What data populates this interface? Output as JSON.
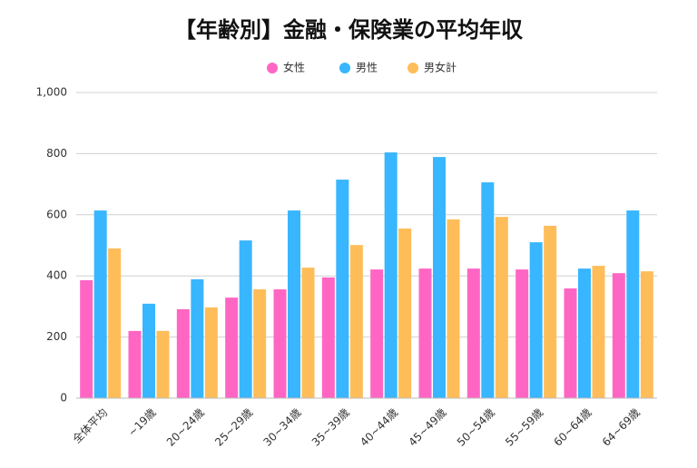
{
  "chart_data": {
    "type": "bar",
    "title": "【年齢別】金融・保険業の平均年収",
    "categories": [
      "全体平均",
      "~19歳",
      "20~24歳",
      "25~29歳",
      "30~34歳",
      "35~39歳",
      "40~44歳",
      "45~49歳",
      "50~54歳",
      "55~59歳",
      "60~64歳",
      "64~69歳"
    ],
    "series": [
      {
        "name": "女性",
        "color": "#ff66c4",
        "values": [
          386,
          220,
          291,
          329,
          356,
          395,
          421,
          424,
          424,
          421,
          359,
          409
        ]
      },
      {
        "name": "男性",
        "color": "#38b6ff",
        "values": [
          614,
          309,
          389,
          516,
          614,
          715,
          804,
          789,
          706,
          510,
          424,
          614
        ]
      },
      {
        "name": "男女計",
        "color": "#ffbd59",
        "values": [
          490,
          220,
          297,
          356,
          427,
          501,
          555,
          585,
          593,
          564,
          433,
          415
        ]
      }
    ],
    "ylim": [
      0,
      1000
    ],
    "yticks": [
      0,
      200,
      400,
      600,
      800,
      {
        "value": 1000,
        "label": "1,000"
      }
    ],
    "grid": true,
    "legend": "top"
  }
}
